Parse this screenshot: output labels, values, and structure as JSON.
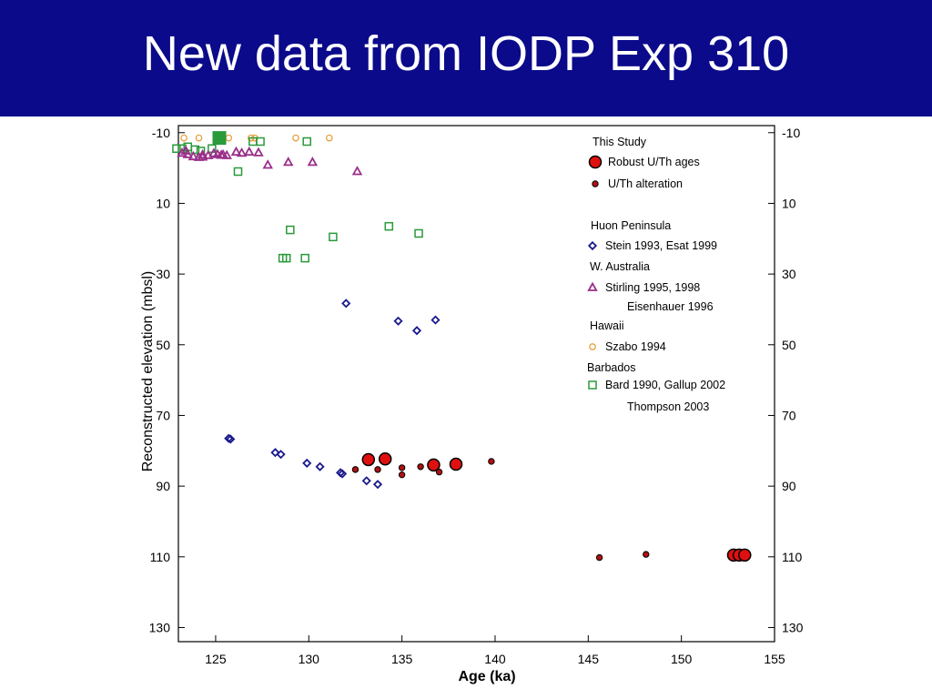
{
  "slide": {
    "title": "New data from IODP Exp 310",
    "title_bg": "#0a0a8a",
    "title_color": "#ffffff"
  },
  "chart_data": {
    "type": "scatter",
    "xlabel": "Age (ka)",
    "ylabel": "Reconstructed elevation (mbsl)",
    "xlim": [
      123,
      155
    ],
    "ylim": [
      -12,
      134
    ],
    "y_inverted": true,
    "xticks": [
      125,
      130,
      135,
      140,
      145,
      150,
      155
    ],
    "yticks": [
      -10,
      10,
      30,
      50,
      70,
      90,
      110,
      130
    ],
    "legend": {
      "entries": [
        {
          "kind": "header",
          "text": "This Study"
        },
        {
          "kind": "item",
          "series": "this_study_robust",
          "text": "Robust U/Th ages"
        },
        {
          "kind": "item",
          "series": "this_study_altered",
          "text": "U/Th alteration"
        },
        {
          "kind": "header",
          "text": "Huon Peninsula"
        },
        {
          "kind": "item",
          "series": "huon",
          "text": "Stein 1993, Esat 1999"
        },
        {
          "kind": "header",
          "text": "W. Australia"
        },
        {
          "kind": "item",
          "series": "waustralia",
          "text": "Stirling 1995, 1998"
        },
        {
          "kind": "cont",
          "text": "Eisenhauer 1996"
        },
        {
          "kind": "header",
          "text": "Hawaii"
        },
        {
          "kind": "item",
          "series": "hawaii",
          "text": "Szabo 1994"
        },
        {
          "kind": "header",
          "text": "Barbados"
        },
        {
          "kind": "item",
          "series": "barbados",
          "text": "Bard 1990, Gallup 2002"
        },
        {
          "kind": "cont",
          "text": "Thompson 2003"
        }
      ]
    },
    "series": [
      {
        "key": "this_study_robust",
        "name": "Robust U/Th ages",
        "marker": "circle-large",
        "color": "#e01010",
        "points": [
          [
            133.2,
            82.5
          ],
          [
            134.1,
            82.3
          ],
          [
            136.7,
            84.0
          ],
          [
            137.9,
            83.8
          ],
          [
            152.8,
            109.5
          ],
          [
            153.1,
            109.5
          ],
          [
            153.4,
            109.5
          ]
        ]
      },
      {
        "key": "this_study_altered",
        "name": "U/Th alteration",
        "marker": "circle-small",
        "color": "#b01010",
        "points": [
          [
            132.5,
            85.3
          ],
          [
            133.7,
            85.3
          ],
          [
            135.0,
            84.8
          ],
          [
            135.0,
            86.8
          ],
          [
            136.0,
            84.5
          ],
          [
            137.0,
            86.0
          ],
          [
            139.8,
            83.0
          ],
          [
            145.6,
            110.2
          ],
          [
            148.1,
            109.3
          ]
        ]
      },
      {
        "key": "huon",
        "name": "Stein 1993, Esat 1999",
        "marker": "diamond",
        "color": "#1a1a8c",
        "points": [
          [
            125.7,
            76.5
          ],
          [
            125.8,
            76.7
          ],
          [
            128.2,
            80.5
          ],
          [
            128.5,
            81.0
          ],
          [
            129.9,
            83.5
          ],
          [
            130.6,
            84.5
          ],
          [
            131.7,
            86.2
          ],
          [
            131.8,
            86.5
          ],
          [
            133.1,
            88.5
          ],
          [
            133.7,
            89.5
          ],
          [
            132.0,
            38.3
          ],
          [
            134.8,
            43.3
          ],
          [
            135.8,
            46.0
          ],
          [
            136.8,
            43.0
          ]
        ]
      },
      {
        "key": "waustralia",
        "name": "Stirling 1995, 1998",
        "marker": "triangle",
        "color": "#9a2f8a",
        "points": [
          [
            123.2,
            -4.2
          ],
          [
            123.5,
            -3.8
          ],
          [
            123.8,
            -3.2
          ],
          [
            124.1,
            -3.0
          ],
          [
            124.3,
            -3.7
          ],
          [
            124.6,
            -3.5
          ],
          [
            124.9,
            -4.1
          ],
          [
            125.1,
            -3.8
          ],
          [
            125.4,
            -3.7
          ],
          [
            125.6,
            -3.5
          ],
          [
            126.1,
            -4.5
          ],
          [
            126.4,
            -4.2
          ],
          [
            126.8,
            -4.5
          ],
          [
            127.3,
            -4.3
          ],
          [
            127.8,
            -0.8
          ],
          [
            128.9,
            -1.6
          ],
          [
            130.2,
            -1.6
          ],
          [
            132.6,
            1.0
          ],
          [
            123.4,
            -4.8
          ],
          [
            124.3,
            -3.1
          ],
          [
            125.3,
            -3.6
          ]
        ]
      },
      {
        "key": "hawaii",
        "name": "Szabo 1994",
        "marker": "circle-open",
        "color": "#e8a040",
        "points": [
          [
            123.3,
            -8.5
          ],
          [
            124.1,
            -8.5
          ],
          [
            125.7,
            -8.5
          ],
          [
            126.9,
            -8.5
          ],
          [
            127.1,
            -8.5
          ],
          [
            129.3,
            -8.5
          ],
          [
            131.1,
            -8.5
          ]
        ]
      },
      {
        "key": "barbados",
        "name": "Bard 1990, Gallup 2002",
        "marker": "square",
        "color": "#2a9a3a",
        "points": [
          [
            122.9,
            -5.5
          ],
          [
            123.2,
            -5.5
          ],
          [
            123.5,
            -6.0
          ],
          [
            123.9,
            -5.2
          ],
          [
            124.2,
            -4.8
          ],
          [
            124.8,
            -5.5
          ],
          [
            127.0,
            -7.5
          ],
          [
            127.4,
            -7.5
          ],
          [
            129.9,
            -7.5
          ],
          [
            126.2,
            1.0
          ],
          [
            129.0,
            17.5
          ],
          [
            131.3,
            19.5
          ],
          [
            134.3,
            16.5
          ],
          [
            135.9,
            18.5
          ],
          [
            128.6,
            25.5
          ],
          [
            128.8,
            25.5
          ],
          [
            129.8,
            25.5
          ]
        ]
      },
      {
        "key": "barbados_filled",
        "name": "",
        "marker": "square-filled",
        "color": "#2a9a3a",
        "points": [
          [
            125.2,
            -8.5
          ]
        ]
      }
    ]
  }
}
